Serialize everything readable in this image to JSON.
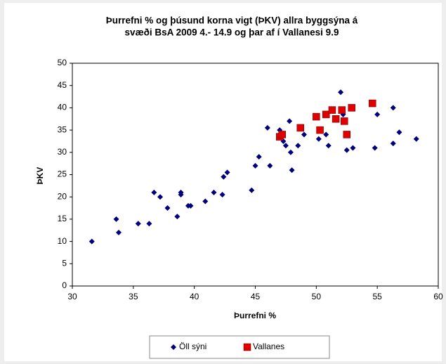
{
  "chart_data": {
    "type": "scatter",
    "title": [
      "Þurrefni % og þúsund korna vigt (ÞKV) allra byggsýna á",
      "svæði BsA 2009 4.- 14.9  og þar af í Vallanesi 9.9"
    ],
    "xlabel": "Þurrefni %",
    "ylabel": "ÞKV",
    "xlim": [
      30,
      60
    ],
    "ylim": [
      0,
      50
    ],
    "xticks": [
      30,
      35,
      40,
      45,
      50,
      55,
      60
    ],
    "yticks": [
      0,
      5,
      10,
      15,
      20,
      25,
      30,
      35,
      40,
      45,
      50
    ],
    "grid": false,
    "legend": "bottom",
    "series": [
      {
        "name": "Öll sýni",
        "color": "#00007f",
        "marker": "diamond",
        "x": [
          31.6,
          33.6,
          33.8,
          35.4,
          36.3,
          36.7,
          37.2,
          37.8,
          38.6,
          38.9,
          38.9,
          39.5,
          39.7,
          40.9,
          41.6,
          42.3,
          42.4,
          42.7,
          44.7,
          45,
          45.3,
          46,
          46.2,
          47,
          47.3,
          47.5,
          47.8,
          47.9,
          48,
          48.5,
          49,
          50.2,
          50.8,
          51,
          52,
          52.2,
          52.5,
          53,
          54.8,
          55,
          56.3,
          56.3,
          56.8,
          58.2
        ],
        "y": [
          10,
          15,
          12,
          14,
          14,
          21,
          20,
          17.5,
          15.6,
          21,
          20.5,
          18,
          18,
          19,
          21,
          20.5,
          24.5,
          25.5,
          21.5,
          27,
          29,
          35.5,
          27,
          35,
          32.5,
          31.5,
          37,
          30,
          26,
          31.5,
          34,
          33,
          34,
          31.5,
          43.5,
          38.5,
          30.5,
          31,
          31,
          38.5,
          40,
          32,
          34.5,
          33
        ]
      },
      {
        "name": "Vallanes",
        "color": "#e00000",
        "marker": "square",
        "x": [
          47,
          47.2,
          48.7,
          50,
          50.3,
          50.8,
          51.3,
          51.6,
          52.1,
          52.3,
          52.5,
          52.9,
          54.6
        ],
        "y": [
          33.5,
          34,
          35.5,
          38,
          35,
          38.5,
          39.5,
          37.5,
          39.5,
          37,
          34,
          40,
          41
        ]
      }
    ]
  }
}
